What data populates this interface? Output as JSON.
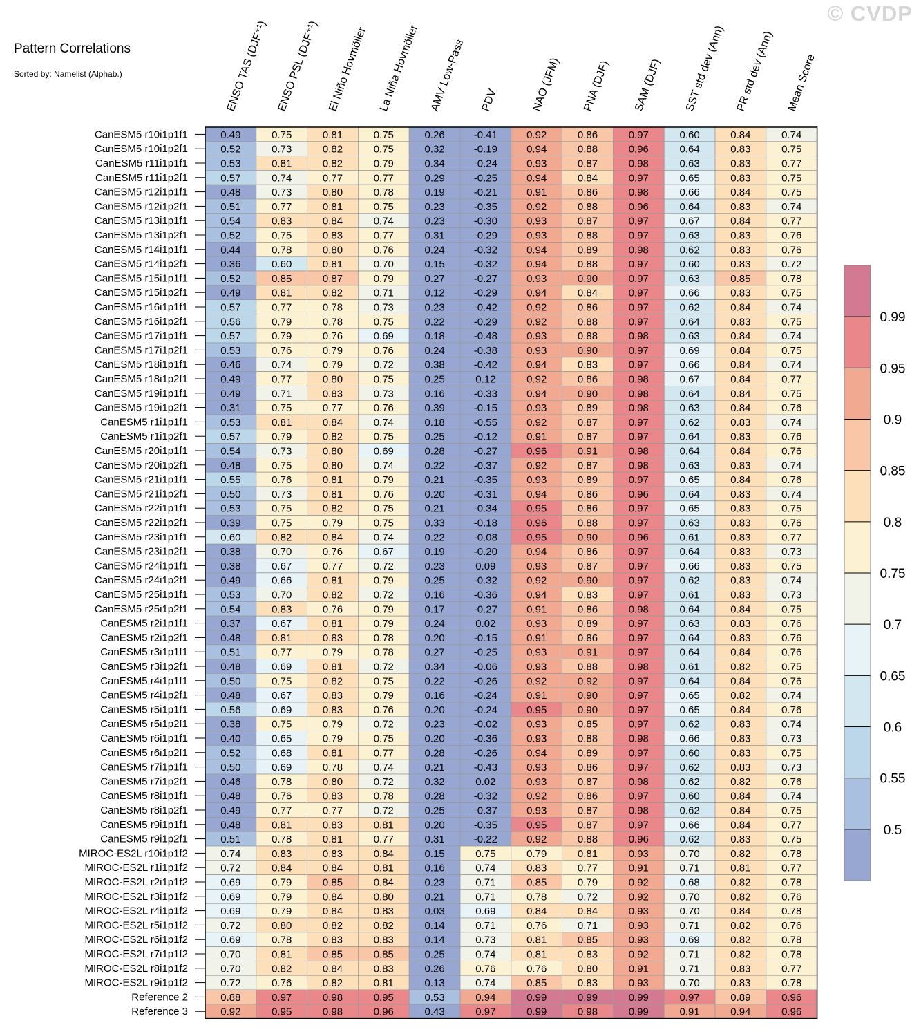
{
  "title": "Pattern Correlations",
  "subtitle": "Sorted by: Namelist (Alphab.)",
  "watermark": "© CVDP",
  "chart_data": {
    "type": "heatmap",
    "title": "Pattern Correlations",
    "subtitle": "Sorted by: Namelist (Alphab.)",
    "columns": [
      "ENSO TAS (DJF⁺¹)",
      "ENSO PSL (DJF⁺¹)",
      "El Niño Hovmöller",
      "La Niña Hovmöller",
      "AMV Low-Pass",
      "PDV",
      "NAO (JFM)",
      "PNA (DJF)",
      "SAM (DJF)",
      "SST std dev (Ann)",
      "PR std dev (Ann)",
      "Mean Score"
    ],
    "rows": [
      "CanESM5 r10i1p1f1",
      "CanESM5 r10i1p2f1",
      "CanESM5 r11i1p1f1",
      "CanESM5 r11i1p2f1",
      "CanESM5 r12i1p1f1",
      "CanESM5 r12i1p2f1",
      "CanESM5 r13i1p1f1",
      "CanESM5 r13i1p2f1",
      "CanESM5 r14i1p1f1",
      "CanESM5 r14i1p2f1",
      "CanESM5 r15i1p1f1",
      "CanESM5 r15i1p2f1",
      "CanESM5 r16i1p1f1",
      "CanESM5 r16i1p2f1",
      "CanESM5 r17i1p1f1",
      "CanESM5 r17i1p2f1",
      "CanESM5 r18i1p1f1",
      "CanESM5 r18i1p2f1",
      "CanESM5 r19i1p1f1",
      "CanESM5 r19i1p2f1",
      "CanESM5 r1i1p1f1",
      "CanESM5 r1i1p2f1",
      "CanESM5 r20i1p1f1",
      "CanESM5 r20i1p2f1",
      "CanESM5 r21i1p1f1",
      "CanESM5 r21i1p2f1",
      "CanESM5 r22i1p1f1",
      "CanESM5 r22i1p2f1",
      "CanESM5 r23i1p1f1",
      "CanESM5 r23i1p2f1",
      "CanESM5 r24i1p1f1",
      "CanESM5 r24i1p2f1",
      "CanESM5 r25i1p1f1",
      "CanESM5 r25i1p2f1",
      "CanESM5 r2i1p1f1",
      "CanESM5 r2i1p2f1",
      "CanESM5 r3i1p1f1",
      "CanESM5 r3i1p2f1",
      "CanESM5 r4i1p1f1",
      "CanESM5 r4i1p2f1",
      "CanESM5 r5i1p1f1",
      "CanESM5 r5i1p2f1",
      "CanESM5 r6i1p1f1",
      "CanESM5 r6i1p2f1",
      "CanESM5 r7i1p1f1",
      "CanESM5 r7i1p2f1",
      "CanESM5 r8i1p1f1",
      "CanESM5 r8i1p2f1",
      "CanESM5 r9i1p1f1",
      "CanESM5 r9i1p2f1",
      "MIROC-ES2L r10i1p1f2",
      "MIROC-ES2L r1i1p1f2",
      "MIROC-ES2L r2i1p1f2",
      "MIROC-ES2L r3i1p1f2",
      "MIROC-ES2L r4i1p1f2",
      "MIROC-ES2L r5i1p1f2",
      "MIROC-ES2L r6i1p1f2",
      "MIROC-ES2L r7i1p1f2",
      "MIROC-ES2L r8i1p1f2",
      "MIROC-ES2L r9i1p1f2",
      "Reference 2",
      "Reference 3"
    ],
    "values": [
      [
        "0.49",
        "0.75",
        "0.81",
        "0.75",
        "0.26",
        "-0.41",
        "0.92",
        "0.86",
        "0.97",
        "0.60",
        "0.84",
        "0.74"
      ],
      [
        "0.52",
        "0.73",
        "0.82",
        "0.75",
        "0.32",
        "-0.19",
        "0.94",
        "0.88",
        "0.96",
        "0.64",
        "0.83",
        "0.75"
      ],
      [
        "0.53",
        "0.81",
        "0.82",
        "0.79",
        "0.34",
        "-0.24",
        "0.93",
        "0.87",
        "0.98",
        "0.63",
        "0.83",
        "0.77"
      ],
      [
        "0.57",
        "0.74",
        "0.77",
        "0.77",
        "0.29",
        "-0.25",
        "0.94",
        "0.84",
        "0.97",
        "0.65",
        "0.83",
        "0.75"
      ],
      [
        "0.48",
        "0.73",
        "0.80",
        "0.78",
        "0.19",
        "-0.21",
        "0.91",
        "0.86",
        "0.98",
        "0.66",
        "0.84",
        "0.75"
      ],
      [
        "0.51",
        "0.77",
        "0.81",
        "0.75",
        "0.23",
        "-0.35",
        "0.92",
        "0.88",
        "0.96",
        "0.64",
        "0.83",
        "0.74"
      ],
      [
        "0.54",
        "0.83",
        "0.84",
        "0.74",
        "0.23",
        "-0.30",
        "0.93",
        "0.87",
        "0.97",
        "0.67",
        "0.84",
        "0.77"
      ],
      [
        "0.52",
        "0.75",
        "0.83",
        "0.77",
        "0.31",
        "-0.29",
        "0.93",
        "0.88",
        "0.97",
        "0.63",
        "0.83",
        "0.76"
      ],
      [
        "0.44",
        "0.78",
        "0.80",
        "0.76",
        "0.24",
        "-0.32",
        "0.94",
        "0.89",
        "0.98",
        "0.62",
        "0.83",
        "0.76"
      ],
      [
        "0.36",
        "0.60",
        "0.81",
        "0.70",
        "0.15",
        "-0.32",
        "0.94",
        "0.88",
        "0.97",
        "0.60",
        "0.83",
        "0.72"
      ],
      [
        "0.52",
        "0.85",
        "0.87",
        "0.79",
        "0.27",
        "-0.27",
        "0.93",
        "0.90",
        "0.97",
        "0.63",
        "0.85",
        "0.78"
      ],
      [
        "0.49",
        "0.81",
        "0.82",
        "0.71",
        "0.12",
        "-0.29",
        "0.94",
        "0.84",
        "0.97",
        "0.66",
        "0.83",
        "0.75"
      ],
      [
        "0.57",
        "0.77",
        "0.78",
        "0.73",
        "0.23",
        "-0.42",
        "0.92",
        "0.86",
        "0.97",
        "0.62",
        "0.84",
        "0.74"
      ],
      [
        "0.56",
        "0.79",
        "0.78",
        "0.75",
        "0.22",
        "-0.29",
        "0.92",
        "0.88",
        "0.97",
        "0.64",
        "0.83",
        "0.75"
      ],
      [
        "0.57",
        "0.79",
        "0.76",
        "0.69",
        "0.18",
        "-0.48",
        "0.93",
        "0.88",
        "0.98",
        "0.63",
        "0.84",
        "0.74"
      ],
      [
        "0.53",
        "0.76",
        "0.79",
        "0.76",
        "0.24",
        "-0.38",
        "0.93",
        "0.90",
        "0.97",
        "0.69",
        "0.84",
        "0.75"
      ],
      [
        "0.46",
        "0.74",
        "0.79",
        "0.72",
        "0.38",
        "-0.42",
        "0.94",
        "0.83",
        "0.97",
        "0.66",
        "0.84",
        "0.74"
      ],
      [
        "0.49",
        "0.77",
        "0.80",
        "0.75",
        "0.25",
        "0.12",
        "0.92",
        "0.86",
        "0.98",
        "0.67",
        "0.84",
        "0.77"
      ],
      [
        "0.49",
        "0.71",
        "0.83",
        "0.73",
        "0.16",
        "-0.33",
        "0.94",
        "0.90",
        "0.98",
        "0.64",
        "0.84",
        "0.75"
      ],
      [
        "0.31",
        "0.75",
        "0.77",
        "0.76",
        "0.39",
        "-0.15",
        "0.93",
        "0.89",
        "0.98",
        "0.63",
        "0.84",
        "0.76"
      ],
      [
        "0.53",
        "0.81",
        "0.84",
        "0.74",
        "0.18",
        "-0.55",
        "0.92",
        "0.87",
        "0.97",
        "0.62",
        "0.83",
        "0.74"
      ],
      [
        "0.57",
        "0.79",
        "0.82",
        "0.75",
        "0.25",
        "-0.12",
        "0.91",
        "0.87",
        "0.97",
        "0.64",
        "0.83",
        "0.76"
      ],
      [
        "0.54",
        "0.73",
        "0.80",
        "0.69",
        "0.28",
        "-0.27",
        "0.96",
        "0.91",
        "0.98",
        "0.64",
        "0.84",
        "0.76"
      ],
      [
        "0.48",
        "0.75",
        "0.80",
        "0.74",
        "0.22",
        "-0.37",
        "0.92",
        "0.87",
        "0.98",
        "0.63",
        "0.83",
        "0.74"
      ],
      [
        "0.55",
        "0.76",
        "0.81",
        "0.79",
        "0.21",
        "-0.35",
        "0.93",
        "0.89",
        "0.97",
        "0.65",
        "0.84",
        "0.76"
      ],
      [
        "0.50",
        "0.73",
        "0.81",
        "0.76",
        "0.20",
        "-0.31",
        "0.94",
        "0.86",
        "0.96",
        "0.64",
        "0.83",
        "0.74"
      ],
      [
        "0.53",
        "0.75",
        "0.82",
        "0.75",
        "0.21",
        "-0.34",
        "0.95",
        "0.86",
        "0.97",
        "0.65",
        "0.83",
        "0.75"
      ],
      [
        "0.39",
        "0.75",
        "0.79",
        "0.75",
        "0.33",
        "-0.18",
        "0.96",
        "0.88",
        "0.97",
        "0.63",
        "0.83",
        "0.76"
      ],
      [
        "0.60",
        "0.82",
        "0.84",
        "0.74",
        "0.22",
        "-0.08",
        "0.95",
        "0.90",
        "0.96",
        "0.61",
        "0.83",
        "0.77"
      ],
      [
        "0.38",
        "0.70",
        "0.76",
        "0.67",
        "0.19",
        "-0.20",
        "0.94",
        "0.86",
        "0.97",
        "0.64",
        "0.83",
        "0.73"
      ],
      [
        "0.38",
        "0.67",
        "0.77",
        "0.72",
        "0.23",
        "0.09",
        "0.93",
        "0.87",
        "0.97",
        "0.66",
        "0.83",
        "0.75"
      ],
      [
        "0.49",
        "0.66",
        "0.81",
        "0.79",
        "0.25",
        "-0.32",
        "0.92",
        "0.90",
        "0.97",
        "0.62",
        "0.83",
        "0.74"
      ],
      [
        "0.53",
        "0.70",
        "0.82",
        "0.72",
        "0.16",
        "-0.36",
        "0.94",
        "0.83",
        "0.97",
        "0.61",
        "0.83",
        "0.73"
      ],
      [
        "0.54",
        "0.83",
        "0.76",
        "0.79",
        "0.17",
        "-0.27",
        "0.91",
        "0.86",
        "0.98",
        "0.64",
        "0.84",
        "0.75"
      ],
      [
        "0.37",
        "0.67",
        "0.81",
        "0.79",
        "0.24",
        "0.02",
        "0.93",
        "0.89",
        "0.97",
        "0.63",
        "0.83",
        "0.76"
      ],
      [
        "0.48",
        "0.81",
        "0.83",
        "0.78",
        "0.20",
        "-0.15",
        "0.91",
        "0.86",
        "0.97",
        "0.64",
        "0.83",
        "0.76"
      ],
      [
        "0.51",
        "0.77",
        "0.79",
        "0.78",
        "0.27",
        "-0.25",
        "0.93",
        "0.91",
        "0.97",
        "0.64",
        "0.84",
        "0.76"
      ],
      [
        "0.48",
        "0.69",
        "0.81",
        "0.72",
        "0.34",
        "-0.06",
        "0.93",
        "0.88",
        "0.98",
        "0.61",
        "0.82",
        "0.75"
      ],
      [
        "0.50",
        "0.75",
        "0.82",
        "0.75",
        "0.22",
        "-0.26",
        "0.92",
        "0.92",
        "0.97",
        "0.64",
        "0.84",
        "0.76"
      ],
      [
        "0.48",
        "0.67",
        "0.83",
        "0.79",
        "0.16",
        "-0.24",
        "0.91",
        "0.90",
        "0.97",
        "0.65",
        "0.82",
        "0.74"
      ],
      [
        "0.56",
        "0.69",
        "0.83",
        "0.76",
        "0.20",
        "-0.24",
        "0.95",
        "0.90",
        "0.97",
        "0.65",
        "0.84",
        "0.76"
      ],
      [
        "0.38",
        "0.75",
        "0.79",
        "0.72",
        "0.23",
        "-0.02",
        "0.93",
        "0.85",
        "0.97",
        "0.62",
        "0.83",
        "0.74"
      ],
      [
        "0.40",
        "0.65",
        "0.79",
        "0.75",
        "0.20",
        "-0.36",
        "0.93",
        "0.88",
        "0.98",
        "0.66",
        "0.83",
        "0.73"
      ],
      [
        "0.52",
        "0.68",
        "0.81",
        "0.77",
        "0.28",
        "-0.26",
        "0.94",
        "0.89",
        "0.97",
        "0.60",
        "0.83",
        "0.75"
      ],
      [
        "0.50",
        "0.69",
        "0.78",
        "0.74",
        "0.21",
        "-0.43",
        "0.93",
        "0.86",
        "0.97",
        "0.62",
        "0.83",
        "0.73"
      ],
      [
        "0.46",
        "0.78",
        "0.80",
        "0.72",
        "0.32",
        "0.02",
        "0.93",
        "0.87",
        "0.98",
        "0.62",
        "0.82",
        "0.76"
      ],
      [
        "0.48",
        "0.76",
        "0.83",
        "0.78",
        "0.28",
        "-0.32",
        "0.92",
        "0.86",
        "0.97",
        "0.60",
        "0.84",
        "0.74"
      ],
      [
        "0.49",
        "0.77",
        "0.77",
        "0.72",
        "0.25",
        "-0.37",
        "0.93",
        "0.87",
        "0.98",
        "0.62",
        "0.84",
        "0.75"
      ],
      [
        "0.48",
        "0.81",
        "0.83",
        "0.81",
        "0.20",
        "-0.35",
        "0.95",
        "0.87",
        "0.97",
        "0.66",
        "0.84",
        "0.77"
      ],
      [
        "0.51",
        "0.78",
        "0.81",
        "0.77",
        "0.31",
        "-0.22",
        "0.92",
        "0.88",
        "0.96",
        "0.62",
        "0.83",
        "0.75"
      ],
      [
        "0.74",
        "0.83",
        "0.83",
        "0.84",
        "0.15",
        "0.75",
        "0.79",
        "0.81",
        "0.93",
        "0.70",
        "0.82",
        "0.78"
      ],
      [
        "0.72",
        "0.84",
        "0.84",
        "0.81",
        "0.16",
        "0.74",
        "0.83",
        "0.77",
        "0.91",
        "0.71",
        "0.81",
        "0.77"
      ],
      [
        "0.69",
        "0.79",
        "0.85",
        "0.84",
        "0.23",
        "0.71",
        "0.85",
        "0.79",
        "0.92",
        "0.68",
        "0.82",
        "0.78"
      ],
      [
        "0.69",
        "0.79",
        "0.84",
        "0.80",
        "0.21",
        "0.71",
        "0.78",
        "0.72",
        "0.92",
        "0.70",
        "0.82",
        "0.76"
      ],
      [
        "0.69",
        "0.79",
        "0.84",
        "0.83",
        "0.03",
        "0.69",
        "0.84",
        "0.84",
        "0.93",
        "0.70",
        "0.84",
        "0.78"
      ],
      [
        "0.72",
        "0.80",
        "0.82",
        "0.82",
        "0.14",
        "0.71",
        "0.76",
        "0.71",
        "0.93",
        "0.71",
        "0.82",
        "0.76"
      ],
      [
        "0.69",
        "0.78",
        "0.83",
        "0.83",
        "0.14",
        "0.73",
        "0.81",
        "0.85",
        "0.93",
        "0.69",
        "0.82",
        "0.78"
      ],
      [
        "0.70",
        "0.81",
        "0.85",
        "0.85",
        "0.25",
        "0.74",
        "0.81",
        "0.83",
        "0.92",
        "0.71",
        "0.82",
        "0.78"
      ],
      [
        "0.70",
        "0.82",
        "0.84",
        "0.83",
        "0.26",
        "0.76",
        "0.76",
        "0.80",
        "0.91",
        "0.71",
        "0.83",
        "0.77"
      ],
      [
        "0.72",
        "0.76",
        "0.82",
        "0.81",
        "0.13",
        "0.74",
        "0.85",
        "0.83",
        "0.93",
        "0.70",
        "0.83",
        "0.78"
      ],
      [
        "0.88",
        "0.97",
        "0.98",
        "0.95",
        "0.53",
        "0.94",
        "0.99",
        "0.99",
        "0.99",
        "0.97",
        "0.89",
        "0.96"
      ],
      [
        "0.92",
        "0.95",
        "0.98",
        "0.96",
        "0.43",
        "0.97",
        "0.99",
        "0.98",
        "0.99",
        "0.91",
        "0.94",
        "0.96"
      ]
    ],
    "colorbar": {
      "tick_labels": [
        "0.5",
        "0.55",
        "0.6",
        "0.65",
        "0.7",
        "0.75",
        "0.8",
        "0.85",
        "0.9",
        "0.95",
        "0.99"
      ],
      "colors": [
        "#97a7d2",
        "#a9c0e0",
        "#bcd7ea",
        "#d3e7f1",
        "#e8f3f7",
        "#f2f3e8",
        "#fcf1d1",
        "#fde0b9",
        "#f9c7a7",
        "#f2a991",
        "#e9878a",
        "#d47992"
      ]
    }
  }
}
